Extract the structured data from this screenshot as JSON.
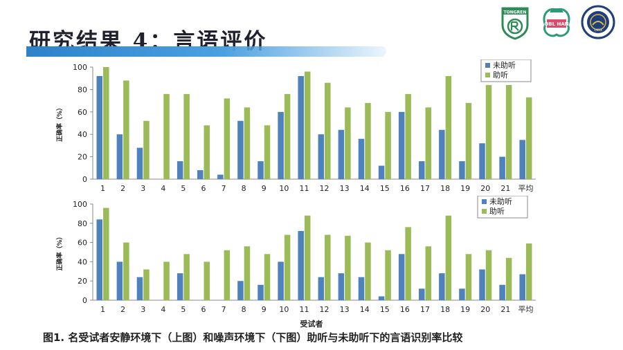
{
  "slide": {
    "title": "研究结果 4：言语评价",
    "caption": "图1. 名受试者安静环境下（上图）和噪声环境下（下图）助听与未助听下的言语识别率比较"
  },
  "logos": [
    {
      "name": "tongren-logo",
      "text": "TONGREN"
    },
    {
      "name": "obl-han-logo",
      "text": "OBL HAN"
    },
    {
      "name": "university-seal-logo",
      "text": "1953"
    }
  ],
  "colors": {
    "unaided": "#4f81bd",
    "aided": "#9bbb59",
    "title_bar": "#2d82c8"
  },
  "chart_data": [
    {
      "type": "bar",
      "categories": [
        "1",
        "2",
        "3",
        "4",
        "5",
        "6",
        "7",
        "8",
        "9",
        "10",
        "11",
        "12",
        "13",
        "14",
        "15",
        "16",
        "17",
        "18",
        "19",
        "20",
        "21",
        "平均"
      ],
      "series": [
        {
          "name": "未助听",
          "values": [
            92,
            40,
            28,
            0,
            16,
            8,
            4,
            52,
            16,
            60,
            92,
            40,
            44,
            36,
            12,
            60,
            16,
            44,
            16,
            32,
            20,
            35
          ]
        },
        {
          "name": "助听",
          "values": [
            100,
            88,
            52,
            76,
            76,
            48,
            72,
            64,
            48,
            76,
            96,
            86,
            64,
            68,
            60,
            76,
            64,
            92,
            68,
            84,
            84,
            73
          ]
        }
      ],
      "ylabel": "正确率（%）",
      "ylim": [
        0,
        100
      ],
      "yticks": [
        0,
        20,
        40,
        60,
        80,
        100
      ],
      "legend": "top-right",
      "grid": false
    },
    {
      "type": "bar",
      "categories": [
        "1",
        "2",
        "3",
        "4",
        "5",
        "6",
        "7",
        "8",
        "9",
        "10",
        "11",
        "12",
        "13",
        "14",
        "15",
        "16",
        "17",
        "18",
        "19",
        "20",
        "21",
        "平均"
      ],
      "series": [
        {
          "name": "未助听",
          "values": [
            84,
            40,
            24,
            0,
            28,
            0,
            0,
            20,
            16,
            40,
            72,
            24,
            28,
            24,
            4,
            48,
            12,
            28,
            12,
            32,
            16,
            27
          ]
        },
        {
          "name": "助听",
          "values": [
            96,
            60,
            32,
            40,
            48,
            40,
            52,
            56,
            48,
            68,
            88,
            68,
            67,
            60,
            52,
            76,
            56,
            88,
            48,
            52,
            44,
            59
          ]
        }
      ],
      "xlabel": "受试者",
      "ylabel": "正确率（%）",
      "ylim": [
        0,
        100
      ],
      "yticks": [
        0,
        20,
        40,
        60,
        80,
        100
      ],
      "legend": "top-right",
      "grid": false
    }
  ]
}
